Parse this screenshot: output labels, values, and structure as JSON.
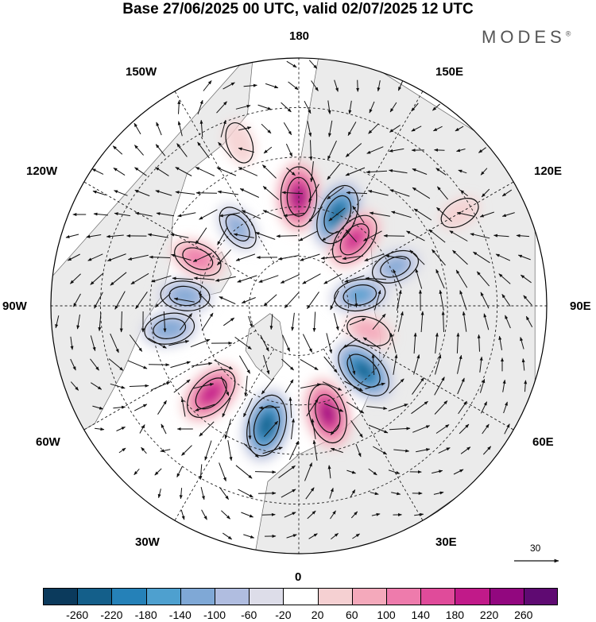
{
  "title": "Base 27/06/2025 00 UTC, valid 02/07/2025 12 UTC",
  "brand": {
    "name": "MODES",
    "mark": "®"
  },
  "map": {
    "projection": "north-polar-stereographic",
    "longitude_labels": {
      "top": "180",
      "bottom": "0",
      "left": "90W",
      "right": "90E",
      "upper_left": "150W",
      "upper_right": "150E",
      "mid_left_upper": "120W",
      "mid_right_upper": "120E",
      "mid_left_lower": "60W",
      "mid_right_lower": "60E",
      "lower_left": "30W",
      "lower_right": "30E"
    },
    "colors": {
      "land": "#ebebeb",
      "ocean": "#ffffff",
      "coast": "#666666",
      "grid": "#222222",
      "contour": "#111111",
      "arrow": "#111111"
    },
    "anomalies": [
      {
        "label": "pos",
        "lon": 180,
        "r": 0.44,
        "value": 230
      },
      {
        "label": "neg",
        "lon": 157,
        "r": 0.4,
        "value": -240
      },
      {
        "label": "pos",
        "lon": 140,
        "r": 0.35,
        "value": 190
      },
      {
        "label": "neg",
        "lon": 112,
        "r": 0.42,
        "value": -120
      },
      {
        "label": "neg",
        "lon": 100,
        "r": 0.25,
        "value": -150
      },
      {
        "label": "pos",
        "lon": 70,
        "r": 0.3,
        "value": 90
      },
      {
        "label": "neg",
        "lon": 45,
        "r": 0.37,
        "value": -240
      },
      {
        "label": "pos",
        "lon": 15,
        "r": 0.45,
        "value": 230
      },
      {
        "label": "neg",
        "lon": -15,
        "r": 0.5,
        "value": -250
      },
      {
        "label": "pos",
        "lon": -45,
        "r": 0.5,
        "value": 210
      },
      {
        "label": "neg",
        "lon": -80,
        "r": 0.53,
        "value": -140
      },
      {
        "label": "neg",
        "lon": -95,
        "r": 0.46,
        "value": -130
      },
      {
        "label": "pos",
        "lon": -115,
        "r": 0.45,
        "value": 130
      },
      {
        "label": "neg",
        "lon": -142,
        "r": 0.4,
        "value": -110
      },
      {
        "label": "pos",
        "lon": -160,
        "r": 0.7,
        "value": 60
      },
      {
        "label": "pos",
        "lon": 120,
        "r": 0.75,
        "value": 50
      }
    ]
  },
  "wind_reference": {
    "value": "30"
  },
  "colorbar": {
    "ticks": [
      "-260",
      "-220",
      "-180",
      "-140",
      "-100",
      "-60",
      "-20",
      "20",
      "60",
      "100",
      "140",
      "180",
      "220",
      "260"
    ],
    "colors": [
      "#0b3a5c",
      "#145f8a",
      "#2581b8",
      "#4ea0cf",
      "#7fa8d6",
      "#b0bde0",
      "#dddde9",
      "#ffffff",
      "#f5d0d2",
      "#f4a9bb",
      "#ee7bac",
      "#e04b9a",
      "#c11a89",
      "#92077f",
      "#5f0a72"
    ]
  }
}
